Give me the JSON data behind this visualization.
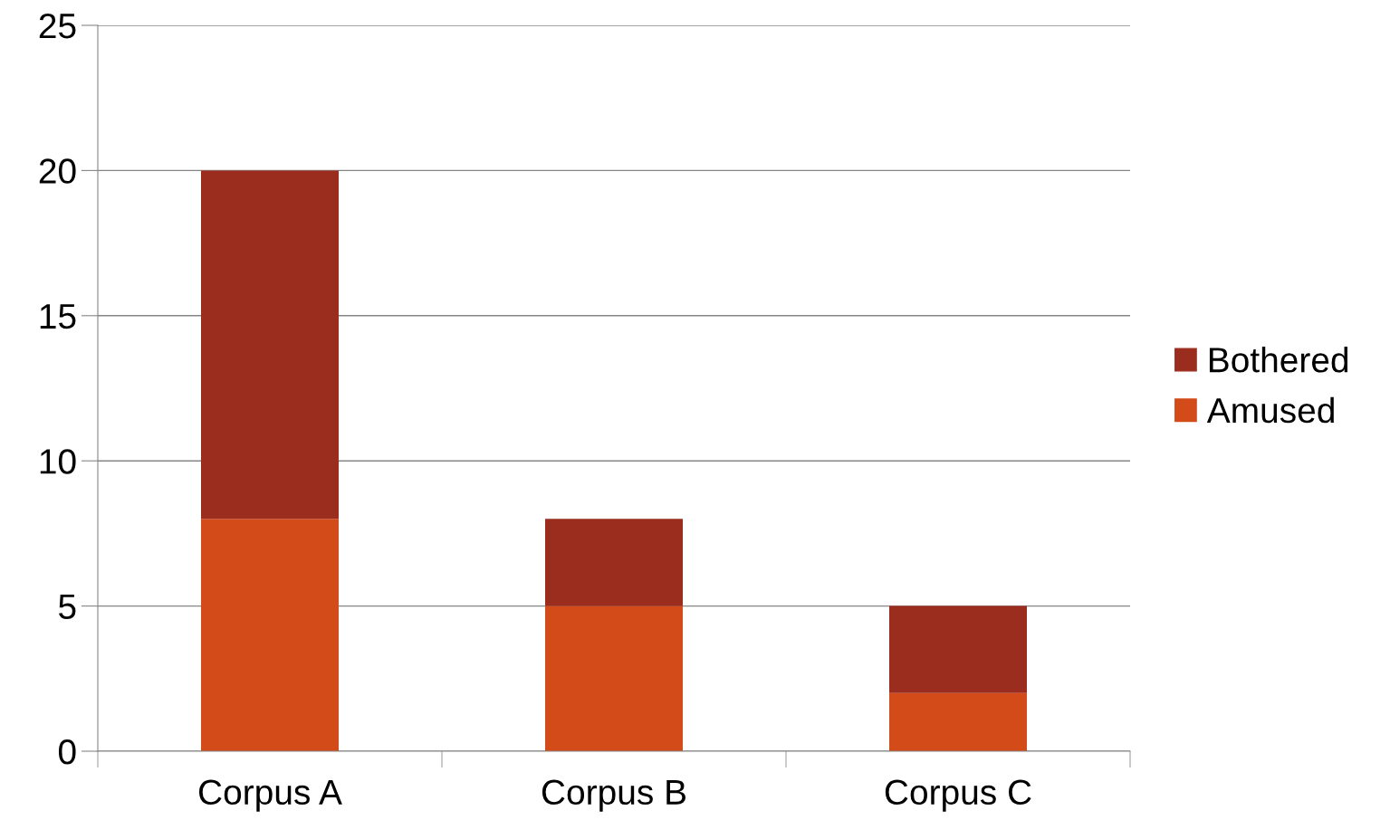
{
  "chart_data": {
    "type": "bar",
    "stacked": true,
    "categories": [
      "Corpus A",
      "Corpus B",
      "Corpus C"
    ],
    "series": [
      {
        "name": "Amused",
        "color": "#d24b18",
        "values": [
          8,
          5,
          2
        ]
      },
      {
        "name": "Bothered",
        "color": "#9b2d1f",
        "values": [
          12,
          3,
          3
        ]
      }
    ],
    "ylim": [
      0,
      25
    ],
    "yticks": [
      0,
      5,
      10,
      15,
      20,
      25
    ],
    "grid": "y",
    "legend": "right"
  }
}
